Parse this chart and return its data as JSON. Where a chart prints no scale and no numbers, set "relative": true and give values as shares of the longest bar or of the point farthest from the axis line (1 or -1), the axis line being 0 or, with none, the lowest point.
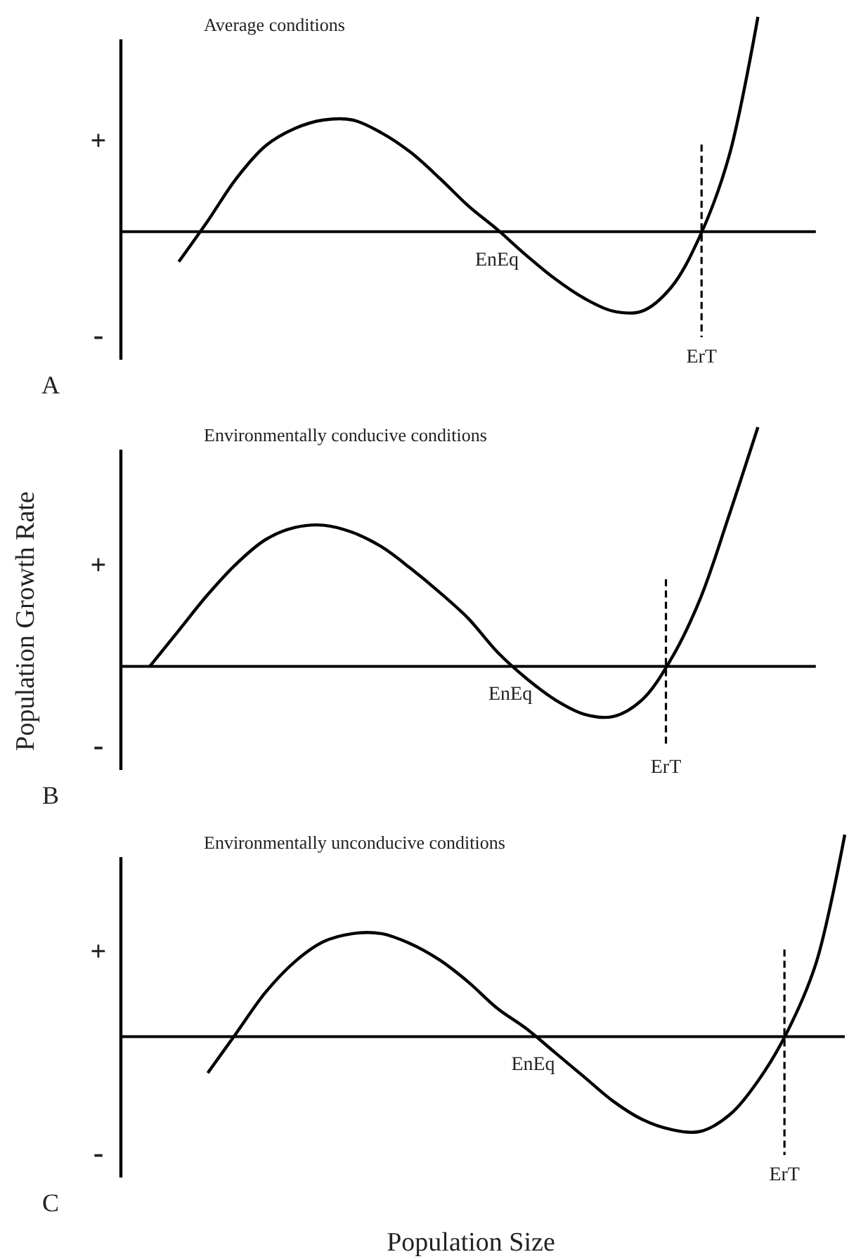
{
  "chart_data": [
    {
      "type": "line",
      "title": "Average conditions",
      "relative": true,
      "categories": [
        null,
        null,
        null,
        null,
        null,
        null,
        null,
        null,
        null,
        null,
        null,
        null,
        null,
        null,
        null,
        null,
        null,
        null,
        null,
        null,
        null,
        null,
        null,
        null,
        null
      ],
      "series": [
        {
          "color": "#000000",
          "values": [
            null,
            null,
            -0.14,
            0.05,
            0.25,
            0.4,
            0.48,
            0.52,
            0.52,
            0.46,
            0.37,
            0.25,
            0.12,
            0.01,
            -0.11,
            -0.22,
            -0.31,
            -0.37,
            -0.37,
            -0.26,
            -0.02,
            0.35,
            1.0,
            null,
            null
          ]
        }
      ],
      "ref_lines": [
        {
          "axis": "x",
          "label": "ErT",
          "line_style": "dashed"
        }
      ],
      "annotations": [
        "EnEq",
        "A",
        "+",
        "-"
      ]
    },
    {
      "type": "line",
      "title": "Environmentally conducive conditions",
      "ylabel": "Population Growth Rate",
      "relative": true,
      "categories": [
        null,
        null,
        null,
        null,
        null,
        null,
        null,
        null,
        null,
        null,
        null,
        null,
        null,
        null,
        null,
        null,
        null,
        null,
        null,
        null,
        null,
        null,
        null,
        null,
        null
      ],
      "series": [
        {
          "color": "#000000",
          "values": [
            null,
            0.0,
            0.15,
            0.3,
            0.43,
            0.53,
            0.58,
            0.59,
            0.56,
            0.5,
            0.41,
            0.31,
            0.2,
            0.06,
            -0.05,
            -0.14,
            -0.2,
            -0.21,
            -0.14,
            0.03,
            0.28,
            0.63,
            1.0,
            null,
            null
          ]
        }
      ],
      "ref_lines": [
        {
          "axis": "x",
          "label": "ErT",
          "line_style": "dashed"
        }
      ],
      "annotations": [
        "EnEq",
        "B",
        "+",
        "-"
      ]
    },
    {
      "type": "line",
      "title": "Environmentally unconducive conditions",
      "xlabel": "Population Size",
      "relative": true,
      "categories": [
        null,
        null,
        null,
        null,
        null,
        null,
        null,
        null,
        null,
        null,
        null,
        null,
        null,
        null,
        null,
        null,
        null,
        null,
        null,
        null,
        null,
        null,
        null,
        null,
        null,
        null
      ],
      "series": [
        {
          "color": "#000000",
          "values": [
            null,
            null,
            null,
            -0.18,
            0.02,
            0.22,
            0.37,
            0.47,
            0.51,
            0.51,
            0.46,
            0.38,
            0.27,
            0.14,
            0.04,
            -0.08,
            -0.2,
            -0.32,
            -0.41,
            -0.46,
            -0.47,
            -0.39,
            -0.22,
            0.02,
            0.36,
            1.0
          ]
        }
      ],
      "ref_lines": [
        {
          "axis": "x",
          "label": "ErT",
          "line_style": "dashed"
        }
      ],
      "annotations": [
        "EnEq",
        "C",
        "+",
        "-"
      ]
    }
  ]
}
